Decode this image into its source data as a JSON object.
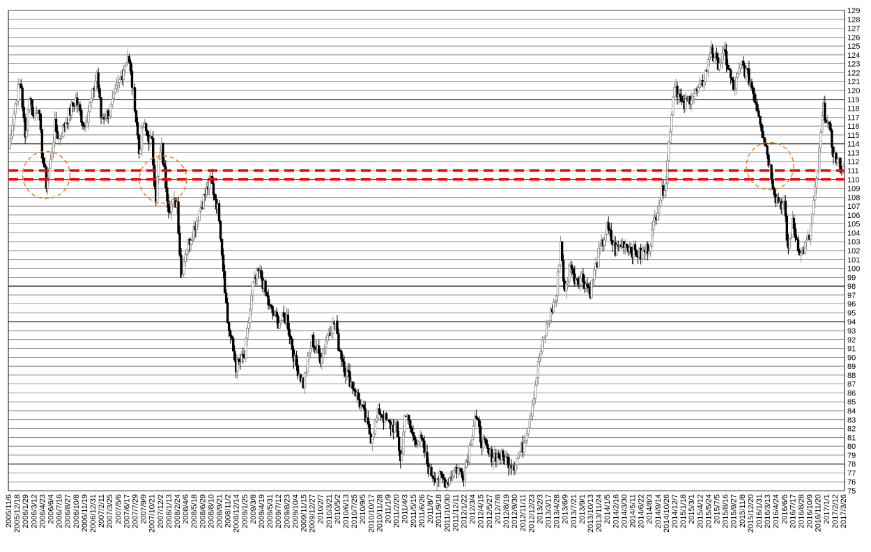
{
  "chart_data": {
    "type": "candlestick",
    "title": "",
    "xlabel": "",
    "ylabel": "",
    "ylim": [
      75,
      129
    ],
    "y_ticks": [
      75,
      76,
      77,
      78,
      79,
      80,
      81,
      82,
      83,
      84,
      85,
      86,
      87,
      88,
      89,
      90,
      91,
      92,
      93,
      94,
      95,
      96,
      97,
      98,
      99,
      100,
      101,
      102,
      103,
      104,
      105,
      106,
      107,
      108,
      109,
      110,
      111,
      112,
      113,
      114,
      115,
      116,
      117,
      118,
      119,
      120,
      121,
      122,
      123,
      124,
      125,
      126,
      127,
      128,
      129
    ],
    "emphasized_gridlines": [
      78,
      94,
      98,
      110,
      114,
      119
    ],
    "grid": true,
    "x_ticks": [
      "2005/11/6",
      "2005/12/18",
      "2006/1/29",
      "2006/3/12",
      "2006/4/23",
      "2006/6/4",
      "2006/7/16",
      "2006/8/27",
      "2006/10/8",
      "2006/11/19",
      "2006/12/31",
      "2007/2/11",
      "2007/3/25",
      "2007/5/6",
      "2007/6/17",
      "2007/7/29",
      "2007/9/9",
      "2007/10/21",
      "2007/12/2",
      "2008/1/13",
      "2008/2/24",
      "2008/4/6",
      "2008/5/18",
      "2008/6/29",
      "2008/8/10",
      "2008/9/21",
      "2008/11/2",
      "2008/12/14",
      "2009/1/25",
      "2009/3/8",
      "2009/4/19",
      "2009/5/31",
      "2009/7/12",
      "2009/8/23",
      "2009/10/4",
      "2009/11/15",
      "2009/12/27",
      "2010/2/7",
      "2010/3/21",
      "2010/5/2",
      "2010/6/13",
      "2010/7/25",
      "2010/9/5",
      "2010/10/17",
      "2010/11/28",
      "2011/1/9",
      "2011/2/20",
      "2011/4/3",
      "2011/5/15",
      "2011/6/26",
      "2011/8/7",
      "2011/9/18",
      "2011/10/30",
      "2011/12/11",
      "2012/1/22",
      "2012/3/4",
      "2012/4/15",
      "2012/5/27",
      "2012/7/8",
      "2012/8/19",
      "2012/9/30",
      "2012/11/11",
      "2012/12/23",
      "2013/2/3",
      "2013/3/17",
      "2013/4/28",
      "2013/6/9",
      "2013/7/21",
      "2013/9/1",
      "2013/10/13",
      "2013/11/24",
      "2014/1/5",
      "2014/2/16",
      "2014/3/30",
      "2014/5/11",
      "2014/6/22",
      "2014/8/3",
      "2014/9/14",
      "2014/10/26",
      "2014/12/7",
      "2015/1/18",
      "2015/3/1",
      "2015/4/12",
      "2015/5/24",
      "2015/7/5",
      "2015/8/16",
      "2015/9/27",
      "2015/11/8",
      "2015/12/20",
      "2016/1/31",
      "2016/3/13",
      "2016/4/24",
      "2016/6/5",
      "2016/7/17",
      "2016/8/28",
      "2016/10/9",
      "2016/11/20",
      "2017/1/1",
      "2017/2/12",
      "2017/3/26"
    ],
    "price_path": [
      [
        "2005/11/6",
        113.5
      ],
      [
        "2005/12/18",
        119.5
      ],
      [
        "2006/1/6",
        121
      ],
      [
        "2006/1/29",
        114.5
      ],
      [
        "2006/2/19",
        119.5
      ],
      [
        "2006/3/12",
        117
      ],
      [
        "2006/4/2",
        118.5
      ],
      [
        "2006/4/23",
        113
      ],
      [
        "2006/5/14",
        109.5
      ],
      [
        "2006/6/4",
        112
      ],
      [
        "2006/6/25",
        116
      ],
      [
        "2006/7/16",
        114.5
      ],
      [
        "2006/8/27",
        117
      ],
      [
        "2006/10/8",
        119
      ],
      [
        "2006/11/19",
        116
      ],
      [
        "2006/12/31",
        119.5
      ],
      [
        "2007/1/21",
        122
      ],
      [
        "2007/2/11",
        117
      ],
      [
        "2007/3/25",
        117.5
      ],
      [
        "2007/5/6",
        120.5
      ],
      [
        "2007/6/24",
        124
      ],
      [
        "2007/7/29",
        118.5
      ],
      [
        "2007/8/19",
        113
      ],
      [
        "2007/9/9",
        116
      ],
      [
        "2007/10/21",
        114
      ],
      [
        "2007/11/11",
        108
      ],
      [
        "2007/11/25",
        112
      ],
      [
        "2007/12/9",
        113.5
      ],
      [
        "2008/1/13",
        107
      ],
      [
        "2008/2/24",
        107.5
      ],
      [
        "2008/3/16",
        99
      ],
      [
        "2008/4/6",
        102
      ],
      [
        "2008/5/18",
        104.5
      ],
      [
        "2008/6/29",
        107.5
      ],
      [
        "2008/8/10",
        110
      ],
      [
        "2008/9/21",
        106
      ],
      [
        "2008/10/12",
        100
      ],
      [
        "2008/11/2",
        94
      ],
      [
        "2008/12/14",
        89
      ],
      [
        "2009/1/25",
        90
      ],
      [
        "2009/3/8",
        98
      ],
      [
        "2009/4/5",
        99.5
      ],
      [
        "2009/4/19",
        99
      ],
      [
        "2009/5/31",
        95.5
      ],
      [
        "2009/7/12",
        94
      ],
      [
        "2009/8/23",
        94.5
      ],
      [
        "2009/10/4",
        89.5
      ],
      [
        "2009/11/15",
        87
      ],
      [
        "2009/12/27",
        92
      ],
      [
        "2010/2/7",
        90
      ],
      [
        "2010/3/21",
        93
      ],
      [
        "2010/4/25",
        94
      ],
      [
        "2010/5/2",
        92
      ],
      [
        "2010/6/13",
        88.5
      ],
      [
        "2010/7/25",
        86.5
      ],
      [
        "2010/9/5",
        84
      ],
      [
        "2010/10/17",
        81
      ],
      [
        "2010/11/28",
        84
      ],
      [
        "2011/1/9",
        82.5
      ],
      [
        "2011/2/20",
        82
      ],
      [
        "2011/3/17",
        78
      ],
      [
        "2011/4/3",
        84
      ],
      [
        "2011/5/15",
        81
      ],
      [
        "2011/6/26",
        80.5
      ],
      [
        "2011/8/7",
        77
      ],
      [
        "2011/9/18",
        76.5
      ],
      [
        "2011/10/30",
        76
      ],
      [
        "2011/12/11",
        77.5
      ],
      [
        "2012/1/22",
        77
      ],
      [
        "2012/2/12",
        79
      ],
      [
        "2012/3/18",
        83.5
      ],
      [
        "2012/4/15",
        81
      ],
      [
        "2012/5/27",
        79
      ],
      [
        "2012/7/8",
        79
      ],
      [
        "2012/8/19",
        78.5
      ],
      [
        "2012/9/30",
        78
      ],
      [
        "2012/11/11",
        80
      ],
      [
        "2012/12/23",
        84
      ],
      [
        "2013/2/3",
        90
      ],
      [
        "2013/3/17",
        94
      ],
      [
        "2013/4/28",
        97
      ],
      [
        "2013/5/19",
        103
      ],
      [
        "2013/6/9",
        97
      ],
      [
        "2013/7/7",
        101
      ],
      [
        "2013/7/21",
        99
      ],
      [
        "2013/9/1",
        99
      ],
      [
        "2013/10/13",
        97.5
      ],
      [
        "2013/11/24",
        101.5
      ],
      [
        "2014/1/5",
        104.5
      ],
      [
        "2014/2/16",
        102
      ],
      [
        "2014/3/30",
        103
      ],
      [
        "2014/5/11",
        102
      ],
      [
        "2014/6/22",
        101.5
      ],
      [
        "2014/8/3",
        102.5
      ],
      [
        "2014/9/14",
        107
      ],
      [
        "2014/10/26",
        110
      ],
      [
        "2014/11/16",
        116
      ],
      [
        "2014/12/7",
        121
      ],
      [
        "2015/1/18",
        118
      ],
      [
        "2015/3/1",
        119.5
      ],
      [
        "2015/4/12",
        120
      ],
      [
        "2015/5/24",
        123
      ],
      [
        "2015/6/7",
        125
      ],
      [
        "2015/7/5",
        123
      ],
      [
        "2015/8/16",
        124
      ],
      [
        "2015/9/27",
        120
      ],
      [
        "2015/11/8",
        123
      ],
      [
        "2015/12/20",
        121
      ],
      [
        "2016/1/31",
        117.5
      ],
      [
        "2016/3/13",
        113
      ],
      [
        "2016/4/24",
        108
      ],
      [
        "2016/6/5",
        107
      ],
      [
        "2016/6/24",
        102
      ],
      [
        "2016/7/17",
        105
      ],
      [
        "2016/8/28",
        101.5
      ],
      [
        "2016/10/9",
        103.5
      ],
      [
        "2016/11/20",
        111
      ],
      [
        "2016/12/15",
        118
      ],
      [
        "2017/1/1",
        117
      ],
      [
        "2017/2/12",
        112.5
      ],
      [
        "2017/3/26",
        111
      ]
    ],
    "reference_lines": [
      {
        "y": 111,
        "style": "dashed",
        "color": "#ff0000"
      },
      {
        "y": 110,
        "style": "dashed",
        "color": "#ff0000"
      }
    ],
    "circles": [
      {
        "x": "2006/5/14",
        "y": 110.5
      },
      {
        "x": "2007/12/16",
        "y": 110
      },
      {
        "x": "2016/3/27",
        "y": 111.5
      }
    ],
    "colors": {
      "candle": "#000000",
      "candle_hollow": "#8a8a8a",
      "grid": "#000000",
      "reference_line": "#ff0000",
      "circle": "#f07a24"
    }
  }
}
